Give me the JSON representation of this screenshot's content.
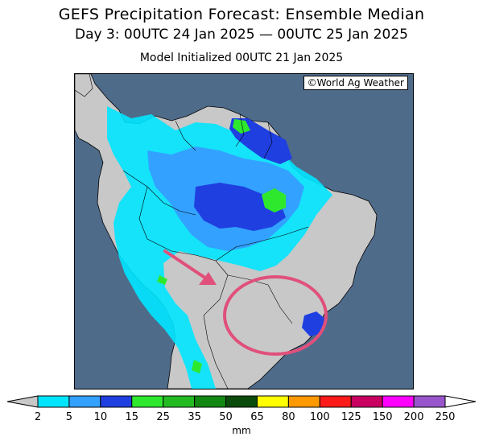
{
  "title": {
    "line1": "GEFS Precipitation Forecast: Ensemble Median",
    "line2": "Day 3: 00UTC 24 Jan 2025 — 00UTC 25 Jan 2025",
    "line3": "Model Initialized 00UTC 21 Jan 2025"
  },
  "map": {
    "credit": "©World Ag Weather",
    "ocean_color": "#4f6b8a",
    "land_color": "#c8c8c8",
    "annotation": {
      "arrow_color": "#e0507a",
      "circle_color": "#e0507a"
    }
  },
  "colorbar": {
    "unit": "mm",
    "labels": [
      "2",
      "5",
      "10",
      "15",
      "25",
      "35",
      "50",
      "65",
      "80",
      "100",
      "125",
      "150",
      "200",
      "250"
    ],
    "colors": [
      "#00e5ff",
      "#33a1ff",
      "#1f3fe0",
      "#2ee82e",
      "#22bb22",
      "#118811",
      "#0a4a0a",
      "#ffff00",
      "#ff9900",
      "#ff1a1a",
      "#c80060",
      "#ff00ff",
      "#9955cc"
    ],
    "low_color": "#c8c8c8",
    "high_color": "#ffffff"
  }
}
